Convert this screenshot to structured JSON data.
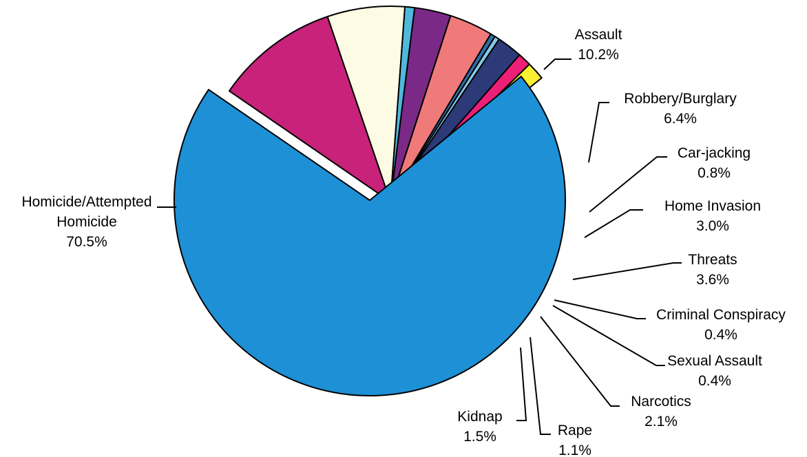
{
  "chart_data": {
    "type": "pie",
    "title": "",
    "slices": [
      {
        "name": "Assault",
        "value": 10.2,
        "label": "10.2%",
        "color": "#c8227a"
      },
      {
        "name": "Robbery/Burglary",
        "value": 6.4,
        "label": "6.4%",
        "color": "#fdfbe3"
      },
      {
        "name": "Car-jacking",
        "value": 0.8,
        "label": "0.8%",
        "color": "#4fb8dc"
      },
      {
        "name": "Home Invasion",
        "value": 3.0,
        "label": "3.0%",
        "color": "#7a2a86"
      },
      {
        "name": "Threats",
        "value": 3.6,
        "label": "3.6%",
        "color": "#f07a7a"
      },
      {
        "name": "Criminal Conspiracy",
        "value": 0.4,
        "label": "0.4%",
        "color": "#2f6fa8"
      },
      {
        "name": "Sexual Assault",
        "value": 0.4,
        "label": "0.4%",
        "color": "#86c8e6"
      },
      {
        "name": "Narcotics",
        "value": 2.1,
        "label": "2.1%",
        "color": "#2c3a78"
      },
      {
        "name": "Rape",
        "value": 1.1,
        "label": "1.1%",
        "color": "#ee1f78"
      },
      {
        "name": "Kidnap",
        "value": 1.5,
        "label": "1.5%",
        "color": "#faf032"
      },
      {
        "name": "Homicide/Attempted Homicide",
        "value": 70.5,
        "label": "70.5%",
        "color": "#1e90d6",
        "exploded": true,
        "name_lines": [
          "Homicide/Attempted",
          "Homicide"
        ]
      }
    ]
  }
}
